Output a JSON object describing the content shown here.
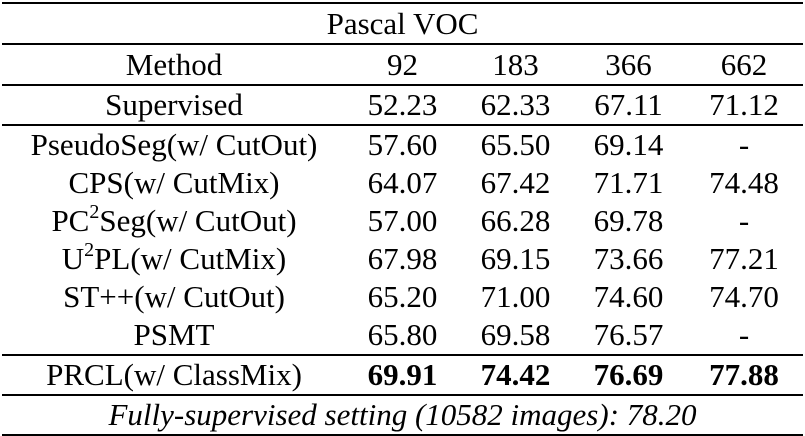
{
  "table": {
    "title": "Pascal VOC",
    "headers": {
      "method": "Method",
      "splits": [
        "92",
        "183",
        "366",
        "662"
      ]
    },
    "baseline": {
      "method": "Supervised",
      "values": [
        "52.23",
        "62.33",
        "67.11",
        "71.12"
      ]
    },
    "rows": [
      {
        "method_pre": "PseudoSeg(w/ CutOut)",
        "sup": "",
        "method_post": "",
        "values": [
          "57.60",
          "65.50",
          "69.14",
          "-"
        ]
      },
      {
        "method_pre": "CPS(w/ CutMix)",
        "sup": "",
        "method_post": "",
        "values": [
          "64.07",
          "67.42",
          "71.71",
          "74.48"
        ]
      },
      {
        "method_pre": "PC",
        "sup": "2",
        "method_post": "Seg(w/ CutOut)",
        "values": [
          "57.00",
          "66.28",
          "69.78",
          "-"
        ]
      },
      {
        "method_pre": "U",
        "sup": "2",
        "method_post": "PL(w/ CutMix)",
        "values": [
          "67.98",
          "69.15",
          "73.66",
          "77.21"
        ]
      },
      {
        "method_pre": "ST++(w/ CutOut)",
        "sup": "",
        "method_post": "",
        "values": [
          "65.20",
          "71.00",
          "74.60",
          "74.70"
        ]
      },
      {
        "method_pre": "PSMT",
        "sup": "",
        "method_post": "",
        "values": [
          "65.80",
          "69.58",
          "76.57",
          "-"
        ]
      }
    ],
    "ours": {
      "method": "PRCL(w/ ClassMix)",
      "values": [
        "69.91",
        "74.42",
        "76.69",
        "77.88"
      ]
    },
    "footer": "Fully-supervised setting (10582 images): 78.20"
  }
}
